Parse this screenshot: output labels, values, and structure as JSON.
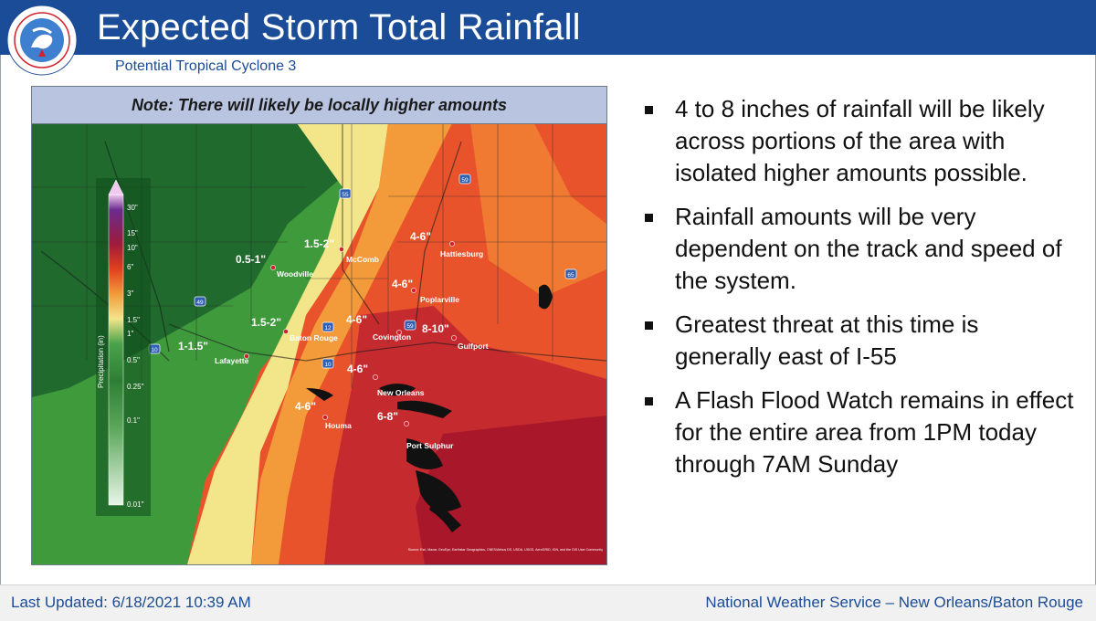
{
  "header": {
    "title": "Expected Storm Total Rainfall",
    "subtitle": "Potential Tropical Cyclone 3",
    "logo_text": "NATIONAL WEATHER SERVICE"
  },
  "map": {
    "note": "Note: There will likely be locally higher amounts",
    "legend": {
      "title": "Precipitation (in)",
      "ticks": [
        "30\"",
        "15\"",
        "10\"",
        "6\"",
        "3\"",
        "1.5\"",
        "1\"",
        "0.5\"",
        "0.25\"",
        "0.1\"",
        "0.01\""
      ]
    },
    "cities": [
      "McComb",
      "Hattiesburg",
      "Woodville",
      "Poplarville",
      "Baton Rouge",
      "Covington",
      "Gulfport",
      "Lafayette",
      "New Orleans",
      "Houma",
      "Port Sulphur"
    ],
    "amounts": [
      "1.5-2\"",
      "4-6\"",
      "0.5-1\"",
      "4-6\"",
      "1.5-2\"",
      "4-6\"",
      "8-10\"",
      "1-1.5\"",
      "4-6\"",
      "4-6\"",
      "6-8\""
    ],
    "highways": [
      "55",
      "59",
      "65",
      "49",
      "12",
      "10",
      "59",
      "10"
    ],
    "attribution": "Source: Esri, Maxar, GeoEye, Earthstar Geographics, CNES/Airbus DS, USDA, USGS, AeroGRID, IGN, and the GIS User Community",
    "colors": {
      "green_dark": "#1f6a2c",
      "green": "#3f9a3c",
      "yellow": "#f3e58a",
      "orange": "#f39a3a",
      "red_orange": "#e8532c",
      "dark_red": "#b3182a"
    }
  },
  "bullets": [
    "4 to 8 inches of rainfall will be likely across portions of the area with isolated higher amounts possible.",
    "Rainfall amounts will be very dependent on the track and speed of the system.",
    "Greatest threat at this time is generally east of I-55",
    "A Flash Flood Watch remains in effect for the entire area from 1PM today through 7AM Sunday"
  ],
  "footer": {
    "updated": "Last Updated:  6/18/2021 10:39 AM",
    "office": "National Weather Service – New Orleans/Baton Rouge"
  },
  "theme": {
    "accent": "#1b4c97"
  }
}
